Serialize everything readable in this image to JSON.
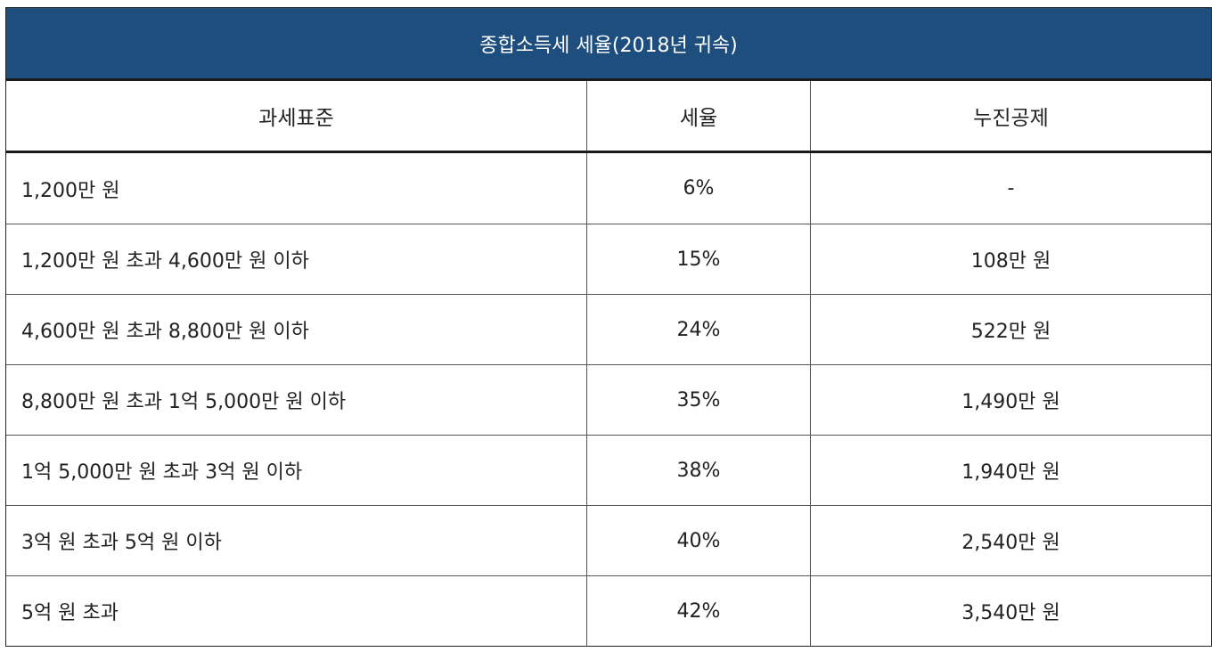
{
  "table": {
    "title": "종합소득세 세율(2018년 귀속)",
    "headers": [
      "과세표준",
      "세율",
      "누진공제"
    ],
    "rows": [
      [
        "1,200만 원",
        "6%",
        "-"
      ],
      [
        "1,200만 원 초과 4,600만 원 이하",
        "15%",
        "108만 원"
      ],
      [
        "4,600만 원 초과 8,800만 원 이하",
        "24%",
        "522만 원"
      ],
      [
        "8,800만 원 초과 1억 5,000만 원 이하",
        "35%",
        "1,490만 원"
      ],
      [
        "1억 5,000만 원 초과 3억 원 이하",
        "38%",
        "1,940만 원"
      ],
      [
        "3억 원 초과 5억 원 이하",
        "40%",
        "2,540만 원"
      ],
      [
        "5억 원 초과",
        "42%",
        "3,540만 원"
      ]
    ],
    "colors": {
      "title_background": "#1d4e7d",
      "title_text": "#ffffff",
      "border": "#222222"
    }
  }
}
